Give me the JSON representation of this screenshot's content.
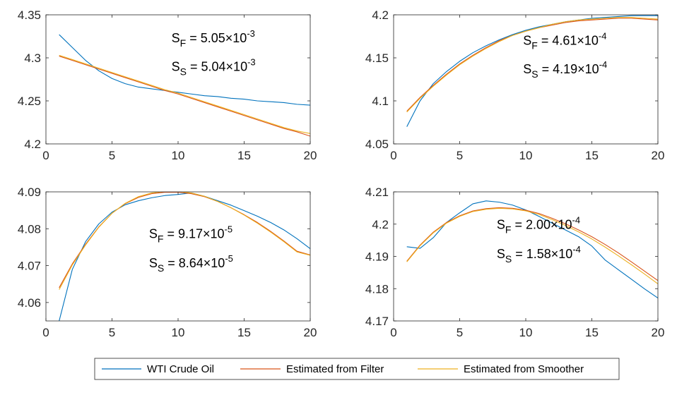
{
  "chart_data": {
    "type": "line",
    "colors": {
      "WTI Crude Oil": "#0072BD",
      "Estimated from Filter": "#D95319",
      "Estimated from Smoother": "#EDB120",
      "axis": "#262626"
    },
    "legend": {
      "placement": "bottom-center",
      "entries": [
        "WTI Crude Oil",
        "Estimated from Filter",
        "Estimated from Smoother"
      ]
    },
    "panels": [
      {
        "id": "top-left",
        "xlim": [
          0,
          20
        ],
        "ylim": [
          4.2,
          4.35
        ],
        "xticks": [
          0,
          5,
          10,
          15,
          20
        ],
        "xtick_labels": [
          "0",
          "5",
          "10",
          "15",
          "20"
        ],
        "yticks": [
          4.2,
          4.25,
          4.3,
          4.35
        ],
        "ytick_labels": [
          "4.2",
          "4.25",
          "4.3",
          "4.35"
        ],
        "annotations": [
          {
            "main": "S",
            "sub": "F",
            "text": " = 5.05×10",
            "sup": "-3",
            "x": 9.5,
            "y": 4.318
          },
          {
            "main": "S",
            "sub": "S",
            "text": " = 5.04×10",
            "sup": "-3",
            "x": 9.5,
            "y": 4.285
          }
        ],
        "x": [
          1,
          2,
          3,
          4,
          5,
          6,
          7,
          8,
          9,
          10,
          11,
          12,
          13,
          14,
          15,
          16,
          17,
          18,
          19,
          20
        ],
        "series": [
          {
            "name": "WTI Crude Oil",
            "values": [
              4.327,
              4.312,
              4.297,
              4.285,
              4.276,
              4.27,
              4.266,
              4.264,
              4.262,
              4.26,
              4.258,
              4.256,
              4.255,
              4.253,
              4.252,
              4.25,
              4.249,
              4.248,
              4.246,
              4.245
            ]
          },
          {
            "name": "Estimated from Filter",
            "values": [
              4.302,
              4.297,
              4.292,
              4.287,
              4.282,
              4.277,
              4.272,
              4.267,
              4.262,
              4.258,
              4.253,
              4.248,
              4.243,
              4.238,
              4.233,
              4.228,
              4.223,
              4.218,
              4.214,
              4.209
            ]
          },
          {
            "name": "Estimated from Smoother",
            "values": [
              4.303,
              4.298,
              4.293,
              4.288,
              4.283,
              4.278,
              4.273,
              4.268,
              4.263,
              4.259,
              4.254,
              4.249,
              4.244,
              4.239,
              4.234,
              4.229,
              4.224,
              4.219,
              4.215,
              4.212
            ]
          }
        ]
      },
      {
        "id": "top-right",
        "xlim": [
          0,
          20
        ],
        "ylim": [
          4.05,
          4.2
        ],
        "xticks": [
          0,
          5,
          10,
          15,
          20
        ],
        "xtick_labels": [
          "0",
          "5",
          "10",
          "15",
          "20"
        ],
        "yticks": [
          4.05,
          4.1,
          4.15,
          4.2
        ],
        "ytick_labels": [
          "4.05",
          "4.1",
          "4.15",
          "4.2"
        ],
        "annotations": [
          {
            "main": "S",
            "sub": "F",
            "text": " = 4.61×10",
            "sup": "-4",
            "x": 9.8,
            "y": 4.165
          },
          {
            "main": "S",
            "sub": "S",
            "text": " = 4.19×10",
            "sup": "-4",
            "x": 9.8,
            "y": 4.132
          }
        ],
        "x": [
          1,
          2,
          3,
          4,
          5,
          6,
          7,
          8,
          9,
          10,
          11,
          12,
          13,
          14,
          15,
          16,
          17,
          18,
          19,
          20
        ],
        "series": [
          {
            "name": "WTI Crude Oil",
            "values": [
              4.07,
              4.1,
              4.12,
              4.134,
              4.146,
              4.156,
              4.164,
              4.171,
              4.177,
              4.182,
              4.186,
              4.189,
              4.192,
              4.194,
              4.196,
              4.197,
              4.198,
              4.199,
              4.199,
              4.199
            ]
          },
          {
            "name": "Estimated from Filter",
            "values": [
              4.088,
              4.104,
              4.118,
              4.131,
              4.143,
              4.153,
              4.162,
              4.17,
              4.176,
              4.181,
              4.185,
              4.188,
              4.191,
              4.193,
              4.194,
              4.195,
              4.196,
              4.196,
              4.195,
              4.194
            ]
          },
          {
            "name": "Estimated from Smoother",
            "values": [
              4.087,
              4.103,
              4.117,
              4.13,
              4.142,
              4.152,
              4.161,
              4.169,
              4.176,
              4.181,
              4.185,
              4.189,
              4.192,
              4.194,
              4.195,
              4.196,
              4.197,
              4.197,
              4.196,
              4.195
            ]
          }
        ]
      },
      {
        "id": "bottom-left",
        "xlim": [
          0,
          20
        ],
        "ylim": [
          4.055,
          4.09
        ],
        "xticks": [
          0,
          5,
          10,
          15,
          20
        ],
        "xtick_labels": [
          "0",
          "5",
          "10",
          "15",
          "20"
        ],
        "yticks": [
          4.06,
          4.07,
          4.08,
          4.09
        ],
        "ytick_labels": [
          "4.06",
          "4.07",
          "4.08",
          "4.09"
        ],
        "annotations": [
          {
            "main": "S",
            "sub": "F",
            "text": " = 9.17×10",
            "sup": "-5",
            "x": 7.8,
            "y": 4.0775
          },
          {
            "main": "S",
            "sub": "S",
            "text": " = 8.64×10",
            "sup": "-5",
            "x": 7.8,
            "y": 4.0695
          }
        ],
        "x": [
          1,
          2,
          3,
          4,
          5,
          6,
          7,
          8,
          9,
          10,
          11,
          12,
          13,
          14,
          15,
          16,
          17,
          18,
          19,
          20
        ],
        "series": [
          {
            "name": "WTI Crude Oil",
            "values": [
              4.055,
              4.069,
              4.0765,
              4.0813,
              4.0845,
              4.0865,
              4.0876,
              4.0884,
              4.089,
              4.0893,
              4.0897,
              4.0888,
              4.0876,
              4.0864,
              4.0849,
              4.0834,
              4.0817,
              4.0797,
              4.0773,
              4.0746
            ]
          },
          {
            "name": "Estimated from Filter",
            "values": [
              4.064,
              4.0705,
              4.0758,
              4.0805,
              4.0842,
              4.0868,
              4.0885,
              4.0895,
              4.0899,
              4.0899,
              4.0895,
              4.0887,
              4.0874,
              4.0857,
              4.0838,
              4.0817,
              4.0793,
              4.0767,
              4.0739,
              4.0729
            ]
          },
          {
            "name": "Estimated from Smoother",
            "values": [
              4.0635,
              4.0702,
              4.0756,
              4.0804,
              4.0842,
              4.0869,
              4.0887,
              4.0897,
              4.0901,
              4.0901,
              4.0897,
              4.0888,
              4.0874,
              4.0857,
              4.0837,
              4.0815,
              4.0791,
              4.0765,
              4.0737,
              4.0728
            ]
          }
        ]
      },
      {
        "id": "bottom-right",
        "xlim": [
          0,
          20
        ],
        "ylim": [
          4.17,
          4.21
        ],
        "xticks": [
          0,
          5,
          10,
          15,
          20
        ],
        "xtick_labels": [
          "0",
          "5",
          "10",
          "15",
          "20"
        ],
        "yticks": [
          4.17,
          4.18,
          4.19,
          4.2,
          4.21
        ],
        "ytick_labels": [
          "4.17",
          "4.18",
          "4.19",
          "4.2",
          "4.21"
        ],
        "annotations": [
          {
            "main": "S",
            "sub": "F",
            "text": " = 2.00×10",
            "sup": "-4",
            "x": 7.8,
            "y": 4.1985
          },
          {
            "main": "S",
            "sub": "S",
            "text": " = 1.58×10",
            "sup": "-4",
            "x": 7.8,
            "y": 4.1895
          }
        ],
        "x": [
          1,
          2,
          3,
          4,
          5,
          6,
          7,
          8,
          9,
          10,
          11,
          12,
          13,
          14,
          15,
          16,
          17,
          18,
          19,
          20
        ],
        "series": [
          {
            "name": "WTI Crude Oil",
            "values": [
              4.193,
              4.1925,
              4.1958,
              4.2005,
              4.2035,
              4.2063,
              4.2072,
              4.2068,
              4.2059,
              4.2044,
              4.2024,
              4.2003,
              4.1982,
              4.1961,
              4.1932,
              4.1889,
              4.1859,
              4.1829,
              4.1799,
              4.1771
            ]
          },
          {
            "name": "Estimated from Filter",
            "values": [
              4.1885,
              4.1935,
              4.1975,
              4.2005,
              4.2026,
              4.2041,
              4.2048,
              4.2051,
              4.2049,
              4.2043,
              4.2033,
              4.2018,
              4.2001,
              4.1982,
              4.1961,
              4.1937,
              4.1911,
              4.1883,
              4.1854,
              4.1825
            ]
          },
          {
            "name": "Estimated from Smoother",
            "values": [
              4.1883,
              4.1933,
              4.1973,
              4.2003,
              4.2024,
              4.2039,
              4.2046,
              4.2049,
              4.2047,
              4.2041,
              4.203,
              4.2014,
              4.1996,
              4.1976,
              4.1954,
              4.1929,
              4.1902,
              4.1874,
              4.1845,
              4.1815
            ]
          }
        ]
      }
    ]
  }
}
